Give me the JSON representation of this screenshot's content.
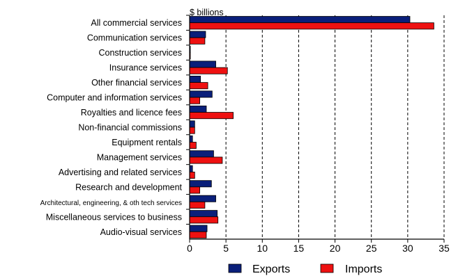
{
  "chart_data": {
    "type": "bar",
    "orientation": "horizontal",
    "unit_label": "$ billions",
    "categories": [
      "All commercial services",
      "Communication services",
      "Construction services",
      "Insurance services",
      "Other financial services",
      "Computer and information services",
      "Royalties and licence fees",
      "Non-financial commissions",
      "Equipment rentals",
      "Management services",
      "Advertising and related services",
      "Research and development",
      "Architectural, engineering, & oth tech services",
      "Miscellaneous services to business",
      "Audio-visual services"
    ],
    "series": [
      {
        "name": "Exports",
        "color": "#0a1f7a",
        "values": [
          30.3,
          2.2,
          0.1,
          3.6,
          1.5,
          3.1,
          2.3,
          0.7,
          0.4,
          3.3,
          0.4,
          3.0,
          3.6,
          3.8,
          2.4
        ]
      },
      {
        "name": "Imports",
        "color": "#ee1111",
        "values": [
          33.6,
          2.1,
          0.1,
          5.2,
          2.5,
          1.4,
          6.0,
          0.7,
          0.9,
          4.5,
          0.7,
          1.4,
          2.1,
          3.9,
          2.3
        ]
      }
    ],
    "xlim": [
      0,
      35
    ],
    "xticks": [
      "0",
      "5",
      "10",
      "15",
      "20",
      "25",
      "30",
      "35"
    ],
    "grid": "vertical dashed",
    "legend_position": "bottom"
  }
}
